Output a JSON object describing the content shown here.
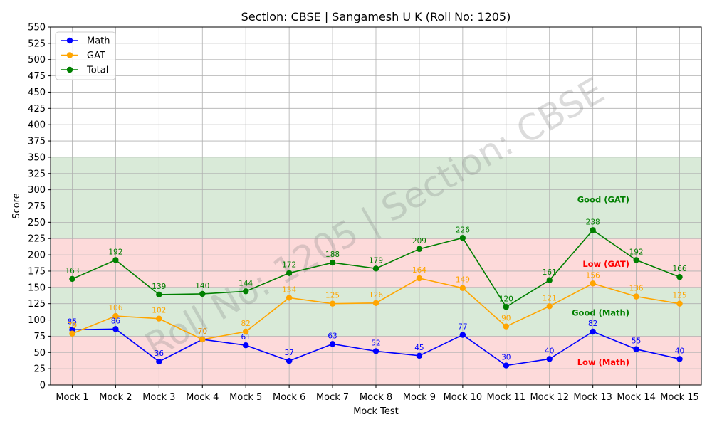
{
  "chart_data": {
    "type": "line",
    "title": "Section: CBSE | Sangamesh U K (Roll No: 1205)",
    "xlabel": "Mock Test",
    "ylabel": "Score",
    "categories": [
      "Mock 1",
      "Mock 2",
      "Mock 3",
      "Mock 4",
      "Mock 5",
      "Mock 6",
      "Mock 7",
      "Mock 8",
      "Mock 9",
      "Mock 10",
      "Mock 11",
      "Mock 12",
      "Mock 13",
      "Mock 14",
      "Mock 15"
    ],
    "ylim": [
      0,
      550
    ],
    "ytick_step": 25,
    "grid": true,
    "legend_position": "top-left",
    "series": [
      {
        "name": "Math",
        "color": "#0000ff",
        "values": [
          85,
          86,
          36,
          70,
          61,
          37,
          63,
          52,
          45,
          77,
          30,
          40,
          82,
          55,
          40
        ]
      },
      {
        "name": "GAT",
        "color": "#ffa500",
        "values": [
          79,
          106,
          102,
          70,
          82,
          134,
          125,
          126,
          164,
          149,
          90,
          121,
          156,
          136,
          125
        ]
      },
      {
        "name": "Total",
        "color": "#008000",
        "values": [
          163,
          192,
          139,
          140,
          144,
          172,
          188,
          179,
          209,
          226,
          120,
          161,
          238,
          192,
          166
        ]
      }
    ],
    "bands": [
      {
        "from": 225,
        "to": 350,
        "color": "#d9ead8"
      },
      {
        "from": 150,
        "to": 225,
        "color": "#fddada"
      },
      {
        "from": 75,
        "to": 150,
        "color": "#d9ead8"
      },
      {
        "from": 0,
        "to": 75,
        "color": "#fddada"
      }
    ],
    "band_labels": [
      {
        "text": "Good (GAT)",
        "y": 285,
        "color": "#008000"
      },
      {
        "text": "Low (GAT)",
        "y": 186,
        "color": "#ff0000"
      },
      {
        "text": "Good (Math)",
        "y": 111,
        "color": "#008000"
      },
      {
        "text": "Low (Math)",
        "y": 35,
        "color": "#ff0000"
      }
    ],
    "watermark": "Roll No: 1205 | Section: CBSE"
  }
}
